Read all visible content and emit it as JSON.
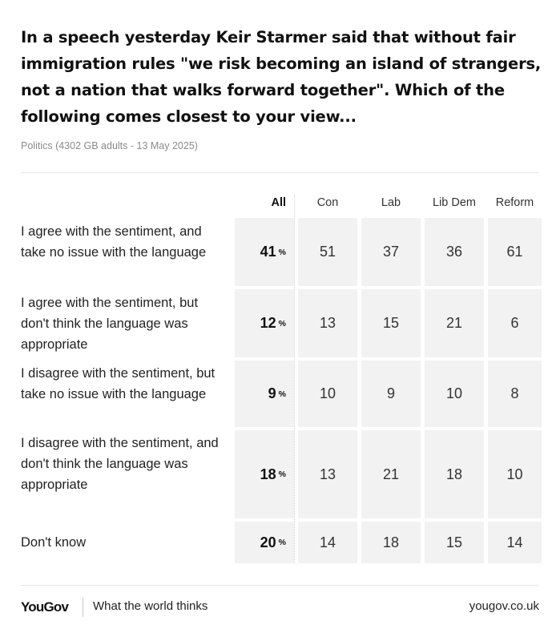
{
  "title": "In a speech yesterday Keir Starmer said that without fair immigration rules \"we risk becoming an island of strangers, not a nation that walks forward together\". Which of the following comes closest to your view...",
  "subtitle": "Politics (4302 GB adults - 13 May 2025)",
  "footer": {
    "logo": "YouGov",
    "tagline": "What the world thinks",
    "site": "yougov.co.uk"
  },
  "chart_data": {
    "type": "table",
    "columns": [
      "All",
      "Con",
      "Lab",
      "Lib Dem",
      "Reform"
    ],
    "all_unit": "%",
    "rows": [
      {
        "label": "I agree with the sentiment, and take no issue with the language",
        "values": [
          41,
          51,
          37,
          36,
          61
        ]
      },
      {
        "label": "I agree with the sentiment, but don't think the language was appropriate",
        "values": [
          12,
          13,
          15,
          21,
          6
        ]
      },
      {
        "label": "I disagree with the sentiment, but take no issue with the language",
        "values": [
          9,
          10,
          9,
          10,
          8
        ]
      },
      {
        "label": "I disagree with the sentiment, and don't think the language was appropriate",
        "values": [
          18,
          13,
          21,
          18,
          10
        ]
      },
      {
        "label": "Don't know",
        "values": [
          20,
          14,
          18,
          15,
          14
        ]
      }
    ]
  }
}
